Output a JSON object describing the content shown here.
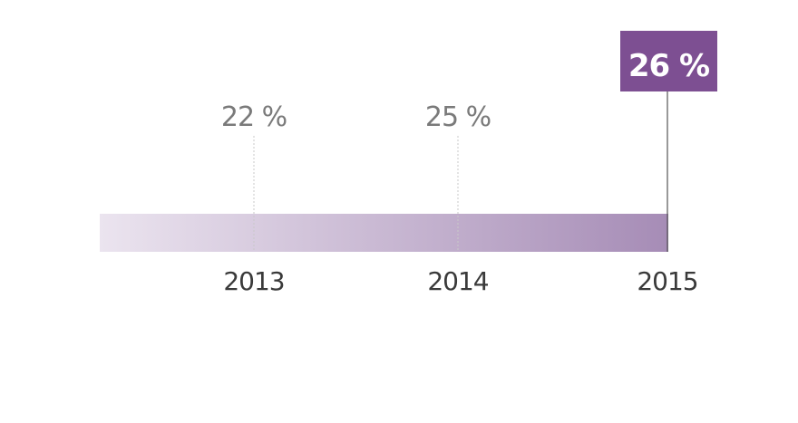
{
  "chart_data": {
    "type": "line",
    "categories": [
      "2013",
      "2014",
      "2015"
    ],
    "values": [
      22,
      25,
      26
    ],
    "value_labels": [
      "22 %",
      "25 %",
      "26 %"
    ],
    "highlight_index": 2,
    "colors": {
      "bar_start": "#ebe4ef",
      "bar_end": "#a68cb6",
      "highlight_box": "#7d4f92",
      "value_text": "#7a7a7a",
      "year_text": "#3a3a3a",
      "leader_line": "#c9c9c9",
      "highlight_line": "#555555"
    }
  }
}
